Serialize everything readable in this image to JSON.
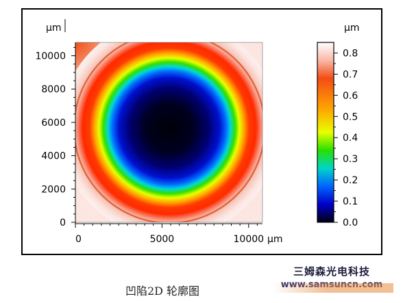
{
  "chart_data": {
    "type": "heatmap",
    "title": "",
    "xlabel": "µm",
    "ylabel": "µm",
    "x_ticks": [
      0,
      5000,
      10000
    ],
    "y_ticks": [
      0,
      2000,
      4000,
      6000,
      8000,
      10000
    ],
    "xlim": [
      0,
      10800
    ],
    "ylim": [
      0,
      10800
    ],
    "surface": {
      "description_center_x_um": 6000,
      "description_center_y_um": 5600,
      "shape": "circular concave pit (dimple)"
    },
    "colorbar": {
      "unit": "µm",
      "ticks": [
        "0.8",
        "0.7",
        "0.6",
        "0.5",
        "0.4",
        "0.3",
        "0.2",
        "0.1",
        "0.0"
      ],
      "range": [
        0.0,
        0.85
      ],
      "colors": [
        "#ffffff",
        "#f9d9d0",
        "#f24d14",
        "#ffaa00",
        "#e8ff00",
        "#27e000",
        "#00d5c8",
        "#0064ff",
        "#0000c8",
        "#000010"
      ]
    }
  },
  "caption": "凹陷2D 轮廓图",
  "watermark": {
    "name": "三姆森光电科技",
    "url": "www.samsuncn.com"
  }
}
